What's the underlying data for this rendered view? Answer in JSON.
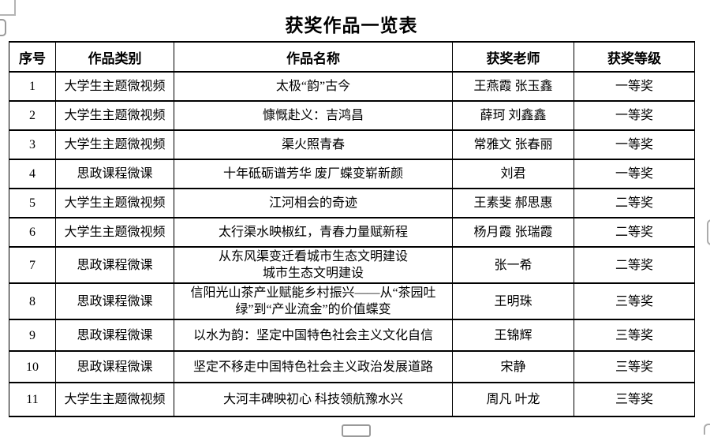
{
  "page": {
    "title": "获奖作品一览表"
  },
  "table": {
    "headers": [
      "序号",
      "作品类别",
      "作品名称",
      "获奖老师",
      "获奖等级"
    ],
    "rows": [
      {
        "no": "1",
        "category": "大学生主题微视频",
        "name": "太极“韵”古今",
        "teachers": "王燕霞 张玉鑫",
        "award": "一等奖"
      },
      {
        "no": "2",
        "category": "大学生主题微视频",
        "name": "慷慨赴义：吉鸿昌",
        "teachers": "薛珂 刘鑫鑫",
        "award": "一等奖"
      },
      {
        "no": "3",
        "category": "大学生主题微视频",
        "name": "渠火照青春",
        "teachers": "常雅文 张春丽",
        "award": "一等奖"
      },
      {
        "no": "4",
        "category": "思政课程微课",
        "name": "十年砥砺谱芳华 废厂蝶变崭新颜",
        "teachers": "刘君",
        "award": "一等奖"
      },
      {
        "no": "5",
        "category": "大学生主题微视频",
        "name": "江河相会的奇迹",
        "teachers": "王素斐 郝思惠",
        "award": "二等奖"
      },
      {
        "no": "6",
        "category": "大学生主题微视频",
        "name": "太行渠水映椒红，青春力量赋新程",
        "teachers": "杨月霞 张瑞霞",
        "award": "二等奖"
      },
      {
        "no": "7",
        "category": "思政课程微课",
        "name": "从东风渠变迁看城市生态文明建设\n城市生态文明建设",
        "teachers": "张一希",
        "award": "二等奖"
      },
      {
        "no": "8",
        "category": "思政课程微课",
        "name": "信阳光山茶产业赋能乡村振兴——从“茶园吐绿”到“产业流金”的价值蝶变",
        "teachers": "王明珠",
        "award": "三等奖"
      },
      {
        "no": "9",
        "category": "思政课程微课",
        "name": "以水为韵：坚定中国特色社会主义文化自信",
        "teachers": "王锦辉",
        "award": "三等奖"
      },
      {
        "no": "10",
        "category": "思政课程微课",
        "name": "坚定不移走中国特色社会主义政治发展道路",
        "teachers": "宋静",
        "award": "三等奖"
      },
      {
        "no": "11",
        "category": "大学生主题微视频",
        "name": "大河丰碑映初心 科技领航豫水兴",
        "teachers": "周凡 叶龙",
        "award": "三等奖"
      }
    ]
  }
}
